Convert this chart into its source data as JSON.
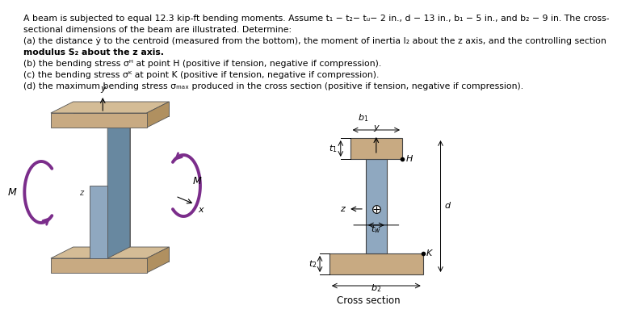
{
  "flange_color": "#c8aa82",
  "flange_dark": "#b09060",
  "flange_light": "#d4bc96",
  "web_color": "#8fa8c0",
  "web_dark": "#6888a0",
  "web_light": "#9ab8c8",
  "arrow_color": "#7b2d8b",
  "background_color": "#ffffff",
  "text_color": "#000000",
  "line1": "A beam is subjected to equal 12.3 kip-ft bending moments. Assume t₁ − t₂− tᵤ− 2 in., d − 13 in., b₁ − 5 in., and b₂ − 9 in. The cross-",
  "line2": "sectional dimensions of the beam are illustrated. Determine:",
  "line3a": "(a) the distance ẏ to the centroid (measured from the bottom), the moment of inertia I₂ about the z axis, and the controlling section",
  "line3b": "modulus S₂ about the z axis.",
  "line4": "(b) the bending stress σᴴ at point H (positive if tension, negative if compression).",
  "line5": "(c) the bending stress σᴷ at point K (positive if tension, negative if compression).",
  "line6": "(d) the maximum bending stress σₘₐₓ produced in the cross section (positive if tension, negative if compression).",
  "fs": 7.8
}
